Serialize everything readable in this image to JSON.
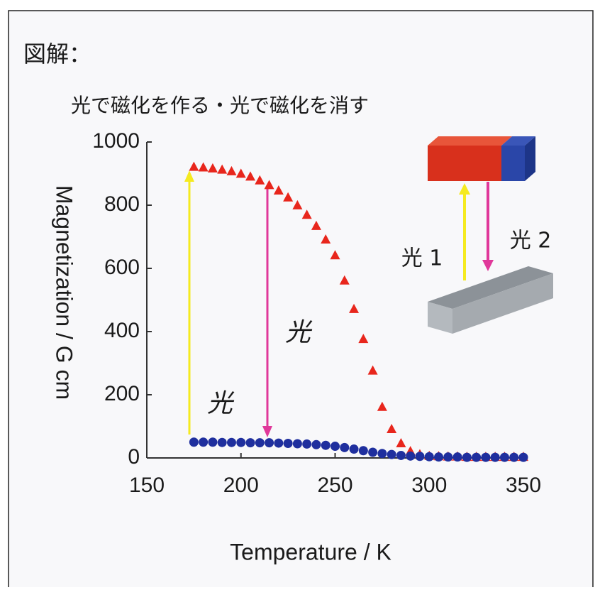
{
  "title": "図解：",
  "subtitle": "光で磁化を作る・光で磁化を消す",
  "chart_data": {
    "type": "scatter",
    "x_label": "Temperature / K",
    "y_label": "Magnetization / G cm",
    "xlim": [
      150,
      350
    ],
    "ylim": [
      0,
      1000
    ],
    "xticks": [
      150,
      200,
      250,
      300,
      350
    ],
    "yticks": [
      0,
      200,
      400,
      600,
      800,
      1000
    ],
    "x": [
      175,
      180,
      185,
      190,
      195,
      200,
      205,
      210,
      215,
      220,
      225,
      230,
      235,
      240,
      245,
      250,
      255,
      260,
      265,
      270,
      275,
      280,
      285,
      290,
      295,
      300,
      305,
      310,
      315,
      320,
      325,
      330,
      335,
      340,
      345,
      350
    ],
    "series": [
      {
        "color": "#e8261c",
        "marker": "triangle",
        "values": [
          920,
          918,
          915,
          911,
          906,
          898,
          889,
          877,
          862,
          845,
          823,
          798,
          768,
          733,
          690,
          640,
          560,
          470,
          375,
          275,
          160,
          90,
          45,
          20,
          10,
          5,
          4,
          3,
          3,
          2,
          2,
          2,
          2,
          2,
          2,
          2
        ]
      },
      {
        "color": "#1f2f9e",
        "marker": "circle",
        "values": [
          50,
          50,
          50,
          49,
          49,
          49,
          48,
          48,
          48,
          47,
          46,
          45,
          44,
          42,
          40,
          37,
          33,
          28,
          23,
          18,
          14,
          11,
          8,
          6,
          5,
          4,
          3,
          3,
          3,
          2,
          2,
          2,
          2,
          2,
          2,
          2
        ]
      }
    ],
    "annotations": [
      "光",
      "光",
      "光 1",
      "光 2"
    ]
  }
}
